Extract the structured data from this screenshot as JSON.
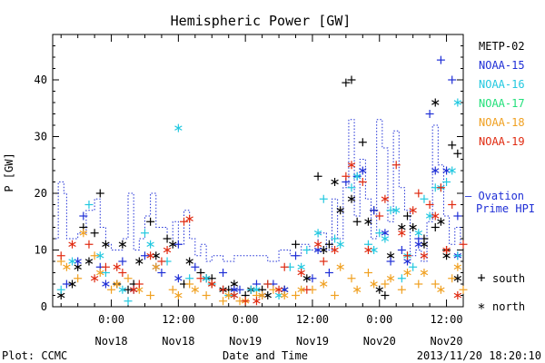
{
  "chart_data": {
    "type": "scatter",
    "title": "Hemispheric Power [GW]",
    "ylabel": "P [GW]",
    "xlabel": "Date and Time",
    "ylim": [
      0,
      48
    ],
    "yticks": [
      0,
      10,
      20,
      30,
      40
    ],
    "xlim_hours": [
      -10.5,
      63
    ],
    "xticks": [
      {
        "h": 0,
        "time": "0:00",
        "day": "Nov18"
      },
      {
        "h": 12,
        "time": "12:00",
        "day": "Nov18"
      },
      {
        "h": 24,
        "time": "0:00",
        "day": "Nov19"
      },
      {
        "h": 36,
        "time": "12:00",
        "day": "Nov19"
      },
      {
        "h": 48,
        "time": "0:00",
        "day": "Nov20"
      },
      {
        "h": 60,
        "time": "12:00",
        "day": "Nov20"
      }
    ],
    "footer_left": "Plot: CCMC",
    "footer_right": "2013/11/20 18:20:10",
    "legend": [
      {
        "name": "METP-02",
        "color": "#000000"
      },
      {
        "name": "NOAA-15",
        "color": "#1f2fd6"
      },
      {
        "name": "NOAA-16",
        "color": "#22c8e0"
      },
      {
        "name": "NOAA-17",
        "color": "#22e07a"
      },
      {
        "name": "NOAA-18",
        "color": "#f0a020"
      },
      {
        "name": "NOAA-19",
        "color": "#e02a10"
      }
    ],
    "ovation_label_1": "— Ovation",
    "ovation_label_2": "Prime HPI",
    "ovation_color": "#1f2fd6",
    "marker_legend": [
      {
        "symbol": "+",
        "label": "south"
      },
      {
        "symbol": "*",
        "label": "north"
      }
    ],
    "ovation": [
      [
        -10,
        12
      ],
      [
        -9.5,
        22
      ],
      [
        -8.5,
        20
      ],
      [
        -8,
        12
      ],
      [
        -6,
        13
      ],
      [
        -4.5,
        17
      ],
      [
        -3,
        19
      ],
      [
        -2,
        14
      ],
      [
        -1,
        11
      ],
      [
        0,
        10
      ],
      [
        1,
        10
      ],
      [
        2,
        12
      ],
      [
        3,
        20
      ],
      [
        4,
        10
      ],
      [
        5,
        12
      ],
      [
        6,
        16
      ],
      [
        7,
        20
      ],
      [
        8,
        14
      ],
      [
        10,
        12
      ],
      [
        11,
        15
      ],
      [
        12,
        11
      ],
      [
        13,
        17
      ],
      [
        14,
        12
      ],
      [
        15,
        9
      ],
      [
        16,
        11
      ],
      [
        17,
        8
      ],
      [
        18,
        9
      ],
      [
        20,
        8
      ],
      [
        22,
        9
      ],
      [
        25,
        9
      ],
      [
        28,
        8
      ],
      [
        30,
        10
      ],
      [
        32,
        9
      ],
      [
        34,
        11
      ],
      [
        35.5,
        10
      ],
      [
        37,
        13
      ],
      [
        38.5,
        10
      ],
      [
        39.5,
        19
      ],
      [
        40.5,
        12
      ],
      [
        41.5,
        21
      ],
      [
        42.5,
        33
      ],
      [
        43.5,
        16
      ],
      [
        44.5,
        26
      ],
      [
        45.5,
        19
      ],
      [
        46.5,
        12
      ],
      [
        47.5,
        33
      ],
      [
        48.5,
        28
      ],
      [
        49.5,
        15
      ],
      [
        50.5,
        31
      ],
      [
        51.5,
        21
      ],
      [
        52.5,
        17
      ],
      [
        53.5,
        9
      ],
      [
        54.5,
        10
      ],
      [
        55.5,
        8
      ],
      [
        56.5,
        15
      ],
      [
        57.5,
        32
      ],
      [
        58.5,
        25
      ],
      [
        59.5,
        16
      ],
      [
        60.5,
        11
      ],
      [
        61.5,
        14
      ],
      [
        62.5,
        11
      ]
    ],
    "series": [
      {
        "name": "METP-02",
        "color": "#000000",
        "south": [
          [
            -5,
            14
          ],
          [
            -3,
            13
          ],
          [
            -2,
            20
          ],
          [
            1,
            4
          ],
          [
            3,
            3
          ],
          [
            4,
            4
          ],
          [
            7,
            15
          ],
          [
            10,
            12
          ],
          [
            13,
            4
          ],
          [
            16,
            6
          ],
          [
            18,
            5
          ],
          [
            21,
            3
          ],
          [
            24,
            2
          ],
          [
            27,
            3
          ],
          [
            33,
            11
          ],
          [
            37,
            23
          ],
          [
            39,
            11
          ],
          [
            42,
            39.5
          ],
          [
            43,
            40
          ],
          [
            44,
            15
          ],
          [
            45,
            29
          ],
          [
            47,
            17
          ],
          [
            49,
            2
          ],
          [
            53,
            16
          ],
          [
            56,
            12
          ],
          [
            58,
            14
          ],
          [
            60,
            10
          ],
          [
            61,
            28.5
          ],
          [
            62,
            27
          ]
        ],
        "north": [
          [
            -9,
            2
          ],
          [
            -7,
            4
          ],
          [
            -6,
            7
          ],
          [
            -4,
            8
          ],
          [
            -1,
            11
          ],
          [
            2,
            11
          ],
          [
            5,
            8
          ],
          [
            8,
            9
          ],
          [
            11,
            11
          ],
          [
            14,
            8
          ],
          [
            17,
            5
          ],
          [
            20,
            3
          ],
          [
            22,
            4
          ],
          [
            25,
            3
          ],
          [
            28,
            2
          ],
          [
            31,
            3
          ],
          [
            35,
            5
          ],
          [
            38,
            10
          ],
          [
            40,
            22
          ],
          [
            41,
            17
          ],
          [
            43,
            19
          ],
          [
            46,
            15
          ],
          [
            48,
            3
          ],
          [
            50,
            9
          ],
          [
            52,
            14
          ],
          [
            54,
            14
          ],
          [
            56,
            11
          ],
          [
            58,
            36
          ],
          [
            59,
            15
          ],
          [
            60,
            9
          ],
          [
            62,
            5
          ]
        ]
      },
      {
        "name": "NOAA-15",
        "color": "#1f2fd6",
        "south": [
          [
            -8,
            4
          ],
          [
            -5,
            16
          ],
          [
            -2,
            7
          ],
          [
            2,
            8
          ],
          [
            6,
            9
          ],
          [
            9,
            6
          ],
          [
            12,
            11
          ],
          [
            15,
            7
          ],
          [
            20,
            6
          ],
          [
            23,
            3
          ],
          [
            26,
            4
          ],
          [
            29,
            4
          ],
          [
            33,
            9
          ],
          [
            36,
            5
          ],
          [
            39,
            6
          ],
          [
            42,
            22
          ],
          [
            44,
            23
          ],
          [
            47,
            17
          ],
          [
            50,
            8
          ],
          [
            52,
            10
          ],
          [
            55,
            12
          ],
          [
            57,
            34
          ],
          [
            59,
            43.5
          ],
          [
            61,
            40
          ],
          [
            62,
            16
          ]
        ],
        "north": [
          [
            -6,
            8
          ],
          [
            -1,
            4
          ],
          [
            4,
            3
          ],
          [
            8,
            7
          ],
          [
            12,
            5
          ],
          [
            18,
            4
          ],
          [
            22,
            3
          ],
          [
            27,
            2
          ],
          [
            31,
            3
          ],
          [
            37,
            10
          ],
          [
            45,
            24
          ],
          [
            49,
            13
          ],
          [
            53,
            8
          ],
          [
            55,
            11
          ],
          [
            58,
            24
          ],
          [
            60,
            24
          ],
          [
            62,
            9
          ]
        ]
      },
      {
        "name": "NOAA-16",
        "color": "#22c8e0",
        "south": [
          [
            -9,
            3
          ],
          [
            -4,
            18
          ],
          [
            -1,
            6
          ],
          [
            3,
            1
          ],
          [
            6,
            13
          ],
          [
            10,
            8
          ],
          [
            14,
            5
          ],
          [
            18,
            4
          ],
          [
            21,
            2
          ],
          [
            25,
            3
          ],
          [
            28,
            4
          ],
          [
            32,
            7
          ],
          [
            35,
            10
          ],
          [
            38,
            19
          ],
          [
            40,
            12
          ],
          [
            43,
            21
          ],
          [
            46,
            11
          ],
          [
            48,
            13
          ],
          [
            50,
            17
          ],
          [
            52,
            5
          ],
          [
            54,
            7
          ],
          [
            56,
            19
          ],
          [
            58,
            21
          ],
          [
            60,
            22
          ],
          [
            62,
            9
          ]
        ],
        "north": [
          [
            -7,
            8
          ],
          [
            -2,
            9
          ],
          [
            2,
            3
          ],
          [
            7,
            11
          ],
          [
            12,
            31.5
          ],
          [
            17,
            5
          ],
          [
            22,
            2
          ],
          [
            26,
            3
          ],
          [
            30,
            2
          ],
          [
            34,
            7
          ],
          [
            37,
            13
          ],
          [
            41,
            11
          ],
          [
            44,
            23
          ],
          [
            47,
            10
          ],
          [
            49,
            12
          ],
          [
            51,
            17
          ],
          [
            53,
            9
          ],
          [
            55,
            13
          ],
          [
            57,
            16
          ],
          [
            59,
            21
          ],
          [
            61,
            24
          ],
          [
            62,
            36
          ]
        ]
      },
      {
        "name": "NOAA-18",
        "color": "#f0a020",
        "south": [
          [
            -9,
            8
          ],
          [
            -6,
            5
          ],
          [
            -3,
            9
          ],
          [
            0,
            3
          ],
          [
            3,
            5
          ],
          [
            7,
            2
          ],
          [
            11,
            3
          ],
          [
            14,
            4
          ],
          [
            17,
            2
          ],
          [
            20,
            1
          ],
          [
            23,
            1
          ],
          [
            26,
            2
          ],
          [
            29,
            3
          ],
          [
            33,
            2
          ],
          [
            36,
            3
          ],
          [
            40,
            2
          ],
          [
            43,
            5
          ],
          [
            46,
            6
          ],
          [
            49,
            4
          ],
          [
            52,
            3
          ],
          [
            55,
            4
          ],
          [
            58,
            4
          ],
          [
            61,
            5
          ],
          [
            63,
            3
          ]
        ],
        "north": [
          [
            -8,
            7
          ],
          [
            -5,
            13
          ],
          [
            -2,
            6
          ],
          [
            1,
            4
          ],
          [
            5,
            3
          ],
          [
            8,
            7
          ],
          [
            12,
            2
          ],
          [
            15,
            3
          ],
          [
            18,
            4
          ],
          [
            21,
            2
          ],
          [
            24,
            1
          ],
          [
            27,
            2
          ],
          [
            31,
            2
          ],
          [
            34,
            3
          ],
          [
            38,
            4
          ],
          [
            41,
            7
          ],
          [
            44,
            3
          ],
          [
            47,
            4
          ],
          [
            50,
            5
          ],
          [
            53,
            6
          ],
          [
            56,
            6
          ],
          [
            59,
            3
          ],
          [
            62,
            7
          ]
        ]
      },
      {
        "name": "NOAA-19",
        "color": "#e02a10",
        "south": [
          [
            -9,
            9
          ],
          [
            -4,
            11
          ],
          [
            -1,
            7
          ],
          [
            2,
            6
          ],
          [
            5,
            4
          ],
          [
            9,
            8
          ],
          [
            13,
            15
          ],
          [
            16,
            5
          ],
          [
            20,
            3
          ],
          [
            24,
            1
          ],
          [
            28,
            4
          ],
          [
            31,
            7
          ],
          [
            35,
            3
          ],
          [
            38,
            8
          ],
          [
            42,
            23
          ],
          [
            45,
            22
          ],
          [
            48,
            16
          ],
          [
            51,
            25
          ],
          [
            53,
            9
          ],
          [
            55,
            20
          ],
          [
            57,
            18
          ],
          [
            59,
            21
          ],
          [
            61,
            18
          ],
          [
            63,
            11
          ]
        ],
        "north": [
          [
            -7,
            11
          ],
          [
            -3,
            5
          ],
          [
            1,
            7
          ],
          [
            4,
            3
          ],
          [
            7,
            9
          ],
          [
            10,
            10
          ],
          [
            14,
            15.5
          ],
          [
            18,
            4
          ],
          [
            22,
            2
          ],
          [
            26,
            1
          ],
          [
            30,
            3
          ],
          [
            34,
            6
          ],
          [
            37,
            11
          ],
          [
            40,
            10
          ],
          [
            43,
            25
          ],
          [
            46,
            10
          ],
          [
            49,
            19
          ],
          [
            52,
            13
          ],
          [
            54,
            17
          ],
          [
            56,
            9
          ],
          [
            58,
            16
          ],
          [
            60,
            10
          ],
          [
            62,
            2
          ]
        ]
      }
    ]
  }
}
